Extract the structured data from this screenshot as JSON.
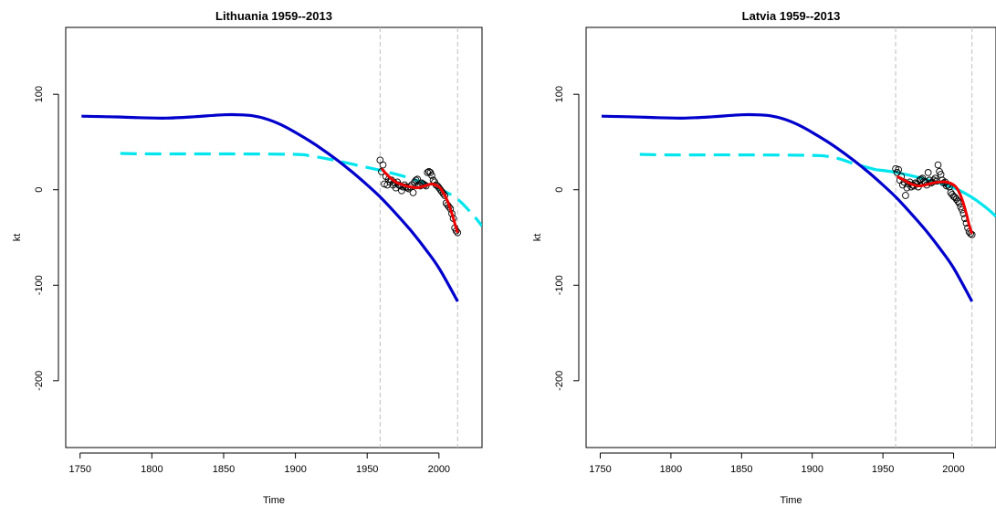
{
  "chart_data": [
    {
      "type": "line",
      "title": "Lithuania 1959--2013",
      "xlabel": "Time",
      "ylabel": "kt",
      "xlim": [
        1740,
        2030
      ],
      "ylim": [
        -270,
        170
      ],
      "xticks": [
        "1750",
        "1800",
        "1850",
        "1900",
        "1950",
        "2000"
      ],
      "yticks": [
        "100",
        "0",
        "-100",
        "-200"
      ],
      "vlines": [
        1959,
        2013
      ],
      "colors": {
        "long_fit": "#0000cc",
        "forecast": "#00e5ee",
        "smooth": "#ee0000",
        "vline": "#bebebe",
        "points": "#000000"
      },
      "series": [
        {
          "key": "long_fit",
          "style": "solid",
          "x": [
            1751,
            1770,
            1790,
            1810,
            1830,
            1850,
            1860,
            1870,
            1880,
            1890,
            1900,
            1910,
            1920,
            1930,
            1940,
            1950,
            1960,
            1970,
            1980,
            1990,
            2000,
            2013
          ],
          "y": [
            77,
            76.5,
            75.5,
            75,
            76.5,
            78.5,
            78.5,
            77.5,
            74,
            68,
            60,
            51,
            41,
            30,
            18,
            5,
            -9,
            -25,
            -42,
            -61,
            -82,
            -117
          ]
        },
        {
          "key": "forecast",
          "style": "dashed",
          "x": [
            1778,
            1800,
            1850,
            1900,
            1910,
            1920,
            1930,
            1945,
            1960,
            1980,
            2000,
            2013,
            2024,
            2030
          ],
          "y": [
            38,
            37.5,
            37.5,
            37,
            35.5,
            33,
            30,
            25,
            20,
            12,
            1,
            -10,
            -27,
            -38
          ]
        },
        {
          "key": "smooth",
          "style": "solid",
          "x": [
            1960,
            1965,
            1970,
            1975,
            1980,
            1985,
            1990,
            1995,
            2000,
            2003,
            2006,
            2009,
            2011,
            2013
          ],
          "y": [
            22,
            14,
            8,
            5,
            3,
            2,
            4,
            6,
            3,
            -3,
            -12,
            -25,
            -35,
            -45
          ]
        }
      ],
      "points": {
        "x": [
          1959,
          1960,
          1961,
          1962,
          1963,
          1964,
          1965,
          1966,
          1967,
          1968,
          1969,
          1970,
          1971,
          1972,
          1973,
          1974,
          1975,
          1976,
          1977,
          1978,
          1979,
          1980,
          1981,
          1982,
          1983,
          1984,
          1985,
          1986,
          1987,
          1988,
          1989,
          1990,
          1991,
          1992,
          1993,
          1994,
          1995,
          1996,
          1997,
          1998,
          1999,
          2000,
          2001,
          2002,
          2003,
          2004,
          2005,
          2006,
          2007,
          2008,
          2009,
          2010,
          2011,
          2012,
          2013
        ],
        "y": [
          31,
          19,
          26,
          6,
          14,
          5,
          11,
          8,
          10,
          5,
          7,
          2,
          8,
          5,
          4,
          -1,
          3,
          5,
          3,
          2,
          1,
          3,
          5,
          -3,
          8,
          10,
          11,
          5,
          4,
          7,
          6,
          5,
          4,
          18,
          19,
          18,
          15,
          10,
          8,
          5,
          4,
          2,
          0,
          -2,
          -4,
          -6,
          -14,
          -16,
          -18,
          -20,
          -25,
          -30,
          -40,
          -43,
          -45
        ]
      }
    },
    {
      "type": "line",
      "title": "Latvia 1959--2013",
      "xlabel": "Time",
      "ylabel": "kt",
      "xlim": [
        1740,
        2030
      ],
      "ylim": [
        -270,
        170
      ],
      "xticks": [
        "1750",
        "1800",
        "1850",
        "1900",
        "1950",
        "2000"
      ],
      "yticks": [
        "100",
        "0",
        "-100",
        "-200"
      ],
      "vlines": [
        1959,
        2013
      ],
      "colors": {
        "long_fit": "#0000cc",
        "forecast": "#00e5ee",
        "smooth": "#ee0000",
        "vline": "#bebebe",
        "points": "#000000"
      },
      "series": [
        {
          "key": "long_fit",
          "style": "solid",
          "x": [
            1751,
            1770,
            1790,
            1810,
            1830,
            1850,
            1860,
            1870,
            1880,
            1890,
            1900,
            1910,
            1920,
            1930,
            1940,
            1950,
            1960,
            1970,
            1980,
            1990,
            2000,
            2013
          ],
          "y": [
            77,
            76.5,
            75.5,
            75,
            76.5,
            78.5,
            78.5,
            77.5,
            74,
            68,
            60,
            51,
            41,
            30,
            18,
            5,
            -9,
            -25,
            -42,
            -61,
            -82,
            -117
          ]
        },
        {
          "key": "forecast",
          "style": "dashed",
          "x": [
            1778,
            1800,
            1850,
            1900,
            1910,
            1920,
            1930,
            1945
          ],
          "y": [
            37,
            36.5,
            36.5,
            36,
            35,
            32,
            27,
            21
          ]
        },
        {
          "key": "forecast",
          "style": "solid",
          "x": [
            1945,
            1960,
            1980,
            2000,
            2013,
            2024,
            2030
          ],
          "y": [
            21,
            18,
            11,
            2,
            -8,
            -20,
            -28
          ]
        },
        {
          "key": "smooth",
          "style": "solid",
          "x": [
            1960,
            1965,
            1970,
            1975,
            1980,
            1985,
            1990,
            1995,
            2000,
            2003,
            2006,
            2009,
            2011,
            2013
          ],
          "y": [
            14,
            10,
            6,
            4,
            5,
            7,
            8,
            8,
            5,
            0,
            -10,
            -25,
            -37,
            -46
          ]
        }
      ],
      "points": {
        "x": [
          1959,
          1960,
          1961,
          1962,
          1963,
          1964,
          1965,
          1966,
          1967,
          1968,
          1969,
          1970,
          1971,
          1972,
          1973,
          1974,
          1975,
          1976,
          1977,
          1978,
          1979,
          1980,
          1981,
          1982,
          1983,
          1984,
          1985,
          1986,
          1987,
          1988,
          1989,
          1990,
          1991,
          1992,
          1993,
          1994,
          1995,
          1996,
          1997,
          1998,
          1999,
          2000,
          2001,
          2002,
          2003,
          2004,
          2005,
          2006,
          2007,
          2008,
          2009,
          2010,
          2011,
          2012,
          2013
        ],
        "y": [
          22,
          18,
          21,
          10,
          14,
          5,
          8,
          -6,
          2,
          6,
          8,
          3,
          5,
          4,
          7,
          6,
          3,
          10,
          11,
          12,
          9,
          8,
          5,
          18,
          10,
          7,
          8,
          10,
          12,
          9,
          26,
          19,
          16,
          10,
          7,
          8,
          4,
          5,
          3,
          -3,
          -5,
          -7,
          -8,
          -10,
          -12,
          -14,
          -18,
          -21,
          -25,
          -30,
          -35,
          -40,
          -44,
          -46,
          -47
        ]
      }
    }
  ]
}
